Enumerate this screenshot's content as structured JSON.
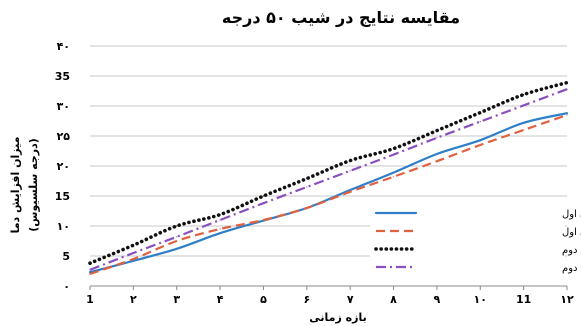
{
  "chart_data": {
    "type": "line",
    "title": "مقایسه نتایج در شیب ۵۰ درجه",
    "xlabel": "بازه زمانی",
    "ylabel_line1": "میزان افزایش دما",
    "ylabel_line2": "(درجه سلسیوس)",
    "x": [
      1,
      2,
      3,
      4,
      5,
      6,
      7,
      8,
      9,
      10,
      11,
      12
    ],
    "x_tick_labels": [
      "1",
      "۲",
      "۳",
      "۴",
      "۵",
      "۶",
      "۷",
      "۸",
      "۹",
      "۱۰",
      "11",
      "۱۲"
    ],
    "ylim": [
      0,
      40
    ],
    "y_ticks": [
      0,
      5,
      10,
      15,
      20,
      25,
      30,
      35,
      40
    ],
    "y_tick_labels": [
      "۰",
      "5",
      "۱۰",
      "15",
      "۲۰",
      "۲۵",
      "۳۰",
      "35",
      "۴۰"
    ],
    "grid": "horizontal",
    "legend_position": "bottom-right",
    "series": [
      {
        "name": "نتایج آزمایش در محدوده زمانی اول",
        "color": "#2f7fc8",
        "dash": "solid",
        "values": [
          2.3,
          4.2,
          6.2,
          8.8,
          10.9,
          13.0,
          16.0,
          18.9,
          22.0,
          24.3,
          27.2,
          28.8
        ]
      },
      {
        "name": "نتایج محاسبات در محدوده زمانی اول",
        "color": "#e06040",
        "dash": "dashed",
        "values": [
          2.0,
          4.5,
          7.5,
          9.5,
          11.0,
          13.0,
          15.7,
          18.2,
          20.8,
          23.5,
          26.0,
          28.5
        ]
      },
      {
        "name": "نتایج آزمایش در محدوده زمانی دوم",
        "color": "#111111",
        "dash": "dotted",
        "values": [
          3.8,
          6.8,
          10.0,
          11.9,
          15.0,
          17.9,
          20.9,
          22.9,
          25.9,
          28.9,
          31.9,
          33.9
        ]
      },
      {
        "name": "نتایج محاسبات در محدوده زمانی دوم",
        "color": "#8a4fc0",
        "dash": "dashdot",
        "values": [
          2.7,
          5.5,
          8.2,
          11.0,
          13.8,
          16.5,
          19.2,
          21.9,
          24.7,
          27.4,
          30.1,
          32.8
        ]
      }
    ]
  }
}
